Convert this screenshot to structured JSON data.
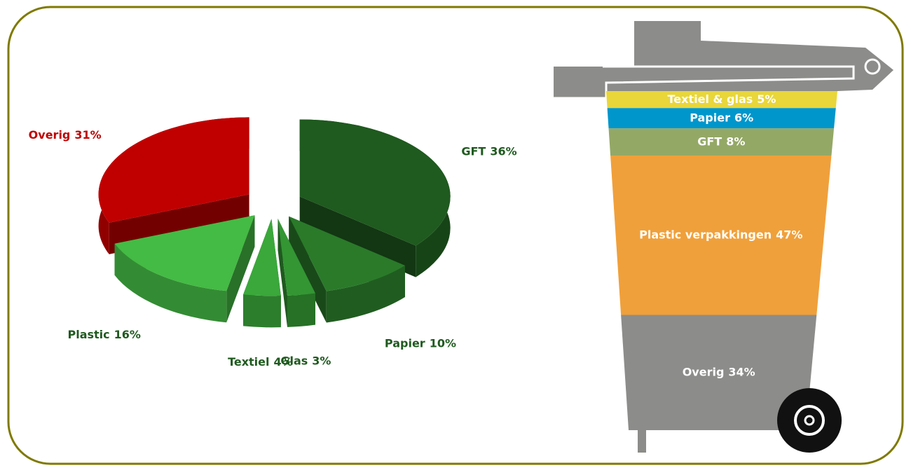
{
  "chart_data": [
    {
      "type": "pie3d",
      "categories": [
        "GFT",
        "Papier",
        "Glas",
        "Textiel",
        "Plastic",
        "Overig"
      ],
      "values": [
        36,
        10,
        3,
        4,
        16,
        31
      ],
      "value_labels": [
        "36%",
        "10%",
        "3%",
        "4%",
        "16%",
        "31%"
      ],
      "colors": [
        "#1f5a1f",
        "#2a7a2a",
        "#339633",
        "#3aa83a",
        "#44bb44",
        "#c00000"
      ]
    },
    {
      "type": "bin",
      "categories": [
        "Textiel & glas",
        "Papier",
        "GFT",
        "Plastic verpakkingen",
        "Overig"
      ],
      "values": [
        5,
        6,
        8,
        47,
        34
      ],
      "value_labels": [
        "5%",
        "6%",
        "8%",
        "47%",
        "34%"
      ],
      "colors": [
        "#e8d63a",
        "#0096cc",
        "#94a866",
        "#f0a03a",
        "#8c8c8a"
      ]
    }
  ]
}
